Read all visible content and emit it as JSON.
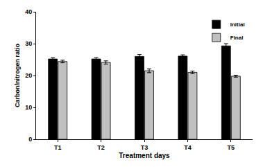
{
  "chart_data": {
    "type": "bar",
    "x_label": "Treatment days",
    "y_label": "Carbon/nitrogen ratio",
    "categories": [
      "T1",
      "T2",
      "T3",
      "T4",
      "T5"
    ],
    "series": [
      {
        "name": "Initial",
        "color": "#000000",
        "values": [
          25.2,
          25.2,
          26.0,
          26.1,
          29.3
        ],
        "error": [
          0.4,
          0.4,
          0.6,
          0.4,
          0.7
        ]
      },
      {
        "name": "Final",
        "color": "#c0c0c0",
        "values": [
          24.4,
          24.1,
          21.5,
          21.0,
          19.8
        ],
        "error": [
          0.4,
          0.5,
          0.6,
          0.4,
          0.3
        ]
      }
    ],
    "ylim": [
      0,
      40
    ],
    "yticks": [
      0,
      10,
      20,
      30,
      40
    ],
    "grid": false,
    "legend": "top-right"
  }
}
